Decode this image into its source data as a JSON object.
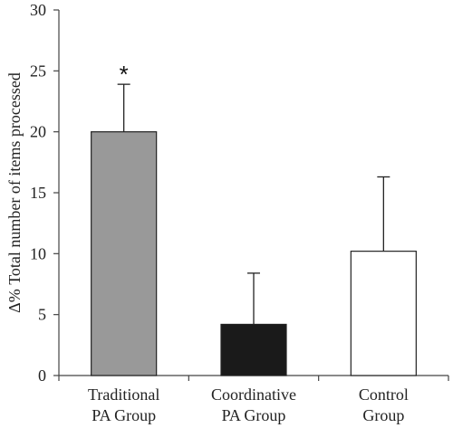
{
  "chart_data": {
    "type": "bar",
    "categories": [
      [
        "Traditional",
        "PA Group"
      ],
      [
        "Coordinative",
        "PA Group"
      ],
      [
        "Control",
        "Group"
      ]
    ],
    "values": [
      20.0,
      4.2,
      10.2
    ],
    "error_upper": [
      23.9,
      8.4,
      16.3
    ],
    "bar_colors": [
      "#999999",
      "#1a1a1a",
      "#ffffff"
    ],
    "annotations": [
      {
        "category_index": 0,
        "text": "*"
      }
    ],
    "ylabel": "Δ% Total number of items processed",
    "xlabel": "",
    "title": "",
    "ylim": [
      0,
      30
    ],
    "yticks": [
      0,
      5,
      10,
      15,
      20,
      25,
      30
    ],
    "grid": false,
    "legend": "none"
  }
}
